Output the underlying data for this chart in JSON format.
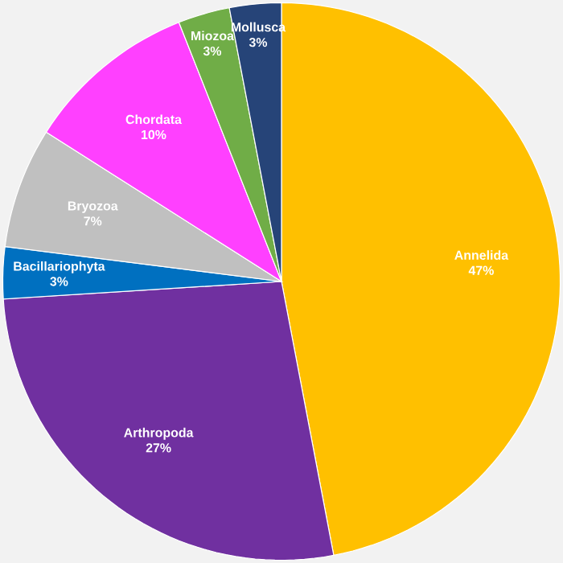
{
  "chart_data": {
    "type": "pie",
    "categories": [
      "Annelida",
      "Arthropoda",
      "Bacillariophyta",
      "Bryozoa",
      "Chordata",
      "Miozoa",
      "Mollusca"
    ],
    "values": [
      47,
      27,
      3,
      7,
      10,
      3,
      3
    ],
    "colors": [
      "#ffc000",
      "#7030a0",
      "#0070c0",
      "#c0c0c0",
      "#ff40ff",
      "#70ad47",
      "#264478"
    ],
    "value_labels": [
      "47%",
      "27%",
      "3%",
      "7%",
      "10%",
      "3%",
      "3%"
    ]
  }
}
